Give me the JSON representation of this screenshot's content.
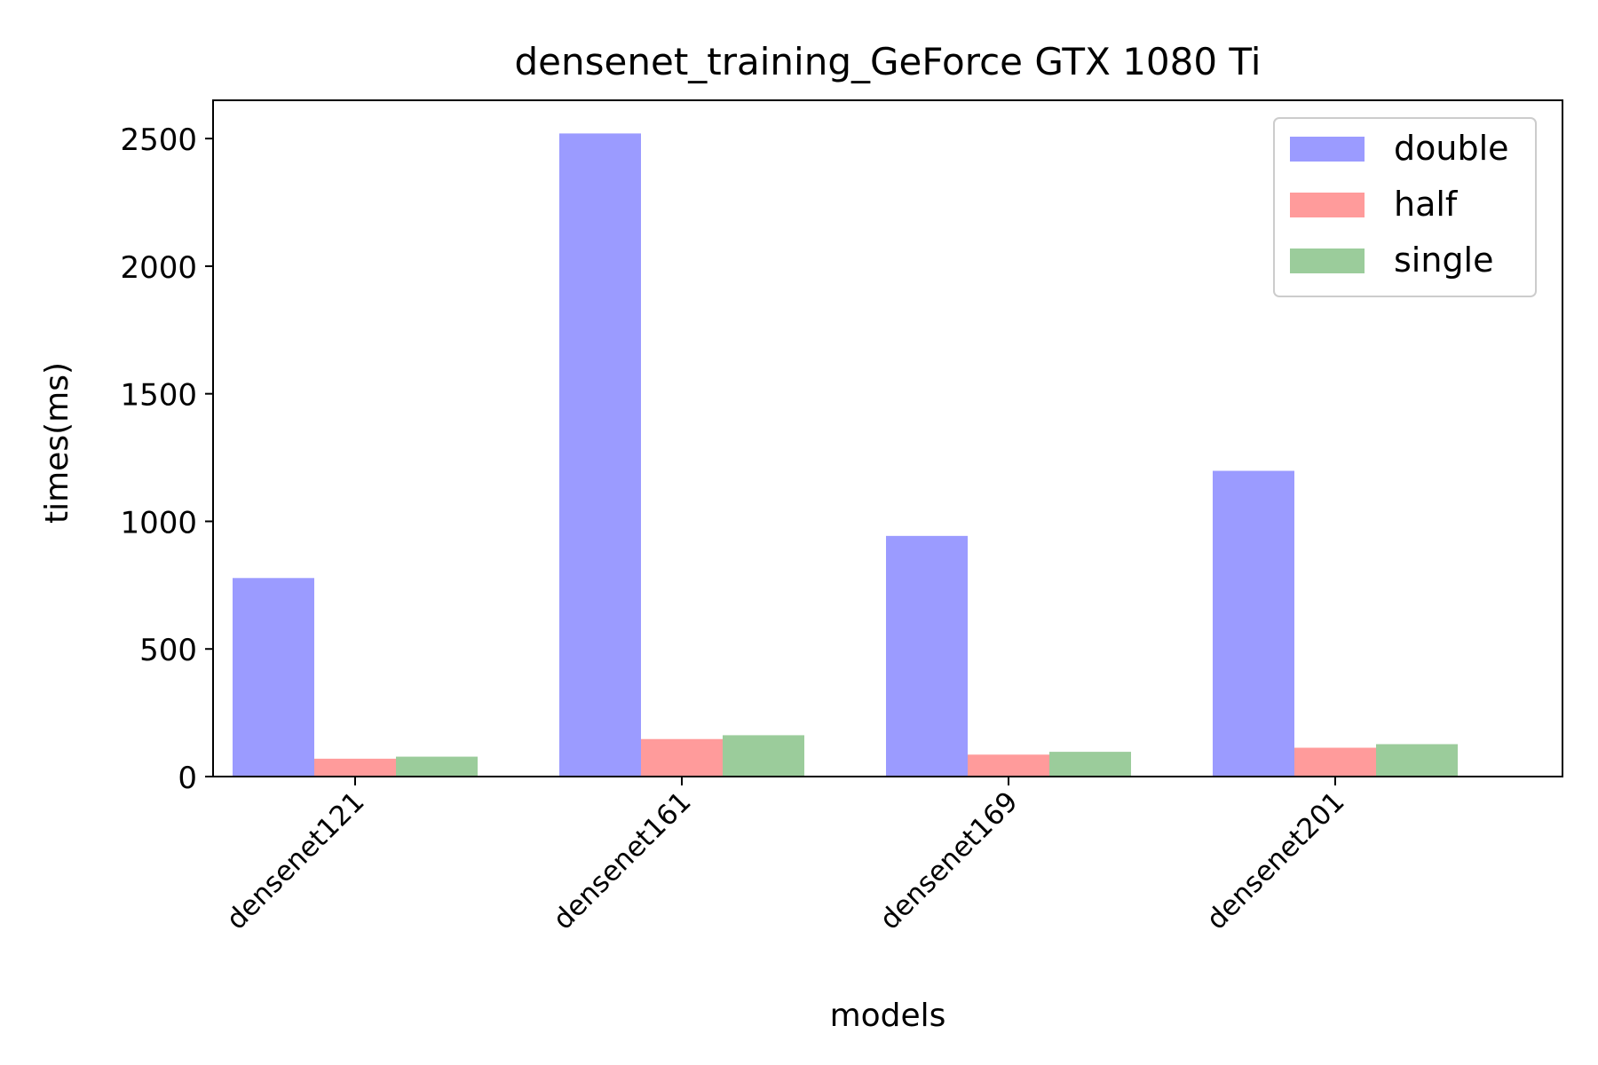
{
  "chart_data": {
    "type": "bar",
    "title": "densenet_training_GeForce GTX 1080 Ti",
    "xlabel": "models",
    "ylabel": "times(ms)",
    "categories": [
      "densenet121",
      "densenet161",
      "densenet169",
      "densenet201"
    ],
    "series": [
      {
        "name": "double",
        "color": "#9b9bff",
        "values": [
          778,
          2520,
          943,
          1198
        ]
      },
      {
        "name": "half",
        "color": "#ff9b9b",
        "values": [
          70,
          147,
          86,
          113
        ]
      },
      {
        "name": "single",
        "color": "#9bcc9b",
        "values": [
          78,
          162,
          97,
          127
        ]
      }
    ],
    "ylim": [
      0,
      2650
    ],
    "yticks": [
      0,
      500,
      1000,
      1500,
      2000,
      2500
    ],
    "legend_position": "top-right",
    "grid": false
  }
}
